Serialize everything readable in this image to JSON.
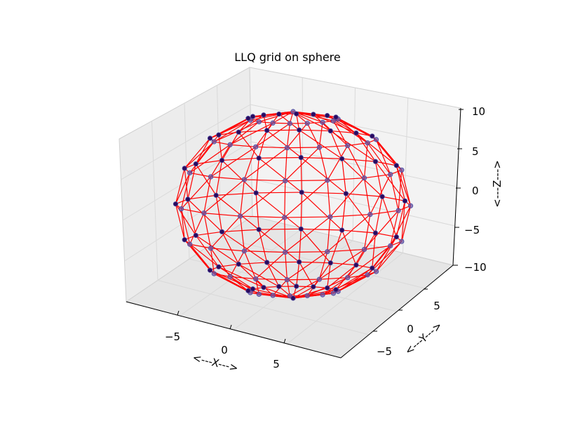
{
  "chart_data": {
    "type": "scatter3d_wireframe",
    "title": "LLQ grid on sphere",
    "xlabel": "<---X--->",
    "ylabel": "<---Y--->",
    "zlabel": "<---Z--->",
    "xlim": [
      -10,
      10
    ],
    "ylim": [
      -10,
      10
    ],
    "zlim": [
      -10,
      10
    ],
    "x_ticks": [
      "−5",
      "0",
      "5"
    ],
    "y_ticks": [
      "−5",
      "0",
      "5"
    ],
    "z_ticks": [
      "−10",
      "−5",
      "0",
      "5",
      "10"
    ],
    "sphere_radius": 10,
    "latitude_bands": 8,
    "longitude_segments": 16,
    "grid": true,
    "line_color": "#ff0000",
    "point_color": "#3a1a8c",
    "point_edge_color": "#4a4aa0",
    "pane_color": "#f2f2f2"
  }
}
